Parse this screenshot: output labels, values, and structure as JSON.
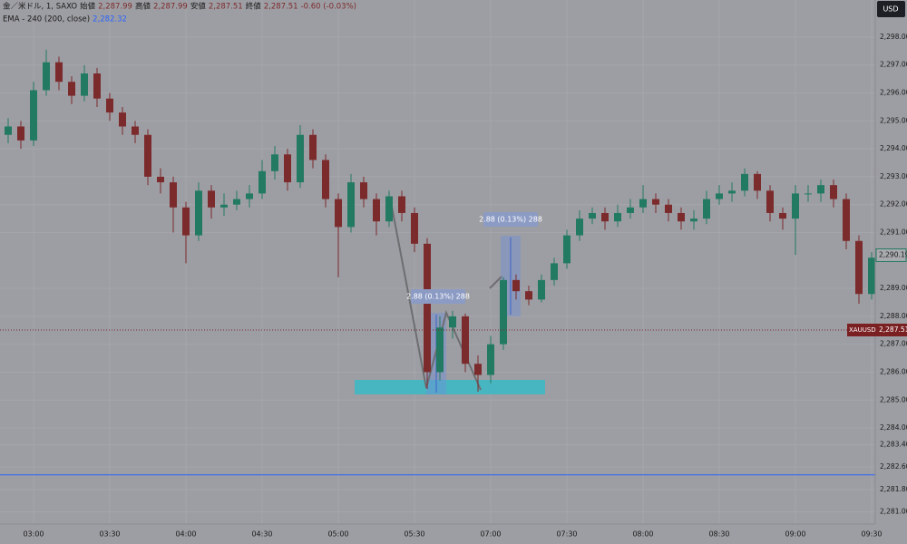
{
  "chart_data": {
    "type": "candlestick",
    "legend": {
      "symbol": "金／米ドル, 1, SAXO",
      "fields": [
        {
          "label": "始値",
          "value": "2,287.99"
        },
        {
          "label": "高値",
          "value": "2,287.99"
        },
        {
          "label": "安値",
          "value": "2,287.51"
        },
        {
          "label": "終値",
          "value": "2,287.51"
        }
      ],
      "change": "-0.60 (-0.03%)"
    },
    "ema": {
      "name": "EMA - 240 (200, close)",
      "value": {
        "value": 2282.32,
        "label": "2,282.32"
      },
      "color": "#2962ff"
    },
    "currency": "USD",
    "last": {
      "symbol": "XAUUSD",
      "price": {
        "value": 2287.51,
        "label": "2,287.51"
      }
    },
    "marker": {
      "value": 2290.19,
      "label": "2,290.19"
    },
    "measures": [
      {
        "label": "2.88 (0.13%) 288"
      },
      {
        "label": "2.88 (0.13%) 288"
      }
    ],
    "colors": {
      "up": "#237a63",
      "down": "#7c2b2d"
    },
    "x": [
      "02:50",
      "02:55",
      "03:00",
      "03:05",
      "03:10",
      "03:15",
      "03:20",
      "03:25",
      "03:30",
      "03:35",
      "03:40",
      "03:45",
      "03:50",
      "03:55",
      "04:00",
      "04:05",
      "04:10",
      "04:15",
      "04:20",
      "04:25",
      "04:30",
      "04:35",
      "04:40",
      "04:45",
      "04:50",
      "04:55",
      "05:00",
      "05:05",
      "05:10",
      "05:15",
      "05:20",
      "05:25",
      "05:30",
      "05:35",
      "05:40",
      "05:45",
      "05:50",
      "05:55",
      "07:00",
      "07:05",
      "07:10",
      "07:15",
      "07:20",
      "07:25",
      "07:30",
      "07:35",
      "07:40",
      "07:45",
      "07:50",
      "07:55",
      "08:00",
      "08:05",
      "08:10",
      "08:15",
      "08:20",
      "08:25",
      "08:30",
      "08:35",
      "08:40",
      "08:45",
      "08:50",
      "08:55",
      "09:00",
      "09:05",
      "09:10",
      "09:15",
      "09:20",
      "09:25",
      "09:30"
    ],
    "open": [
      2294.5,
      2294.8,
      2294.3,
      2296.1,
      2297.1,
      2296.4,
      2295.9,
      2296.7,
      2295.8,
      2295.3,
      2294.8,
      2294.5,
      2293.0,
      2292.8,
      2291.9,
      2290.9,
      2292.5,
      2291.9,
      2292.0,
      2292.2,
      2292.4,
      2293.2,
      2293.8,
      2292.8,
      2294.5,
      2293.6,
      2292.2,
      2291.2,
      2292.8,
      2292.2,
      2291.4,
      2292.3,
      2291.7,
      2290.6,
      2286.0,
      2287.6,
      2288.0,
      2286.3,
      2285.9,
      2287.0,
      2289.3,
      2288.9,
      2288.6,
      2289.3,
      2289.9,
      2290.9,
      2291.5,
      2291.7,
      2291.4,
      2291.7,
      2291.9,
      2292.2,
      2292.0,
      2291.7,
      2291.4,
      2291.5,
      2292.2,
      2292.4,
      2292.5,
      2293.1,
      2292.5,
      2291.7,
      2291.5,
      2292.4,
      2292.4,
      2292.7,
      2292.2,
      2290.7,
      2288.8
    ],
    "high": [
      2295.1,
      2295.0,
      2296.4,
      2297.55,
      2297.3,
      2296.6,
      2297.0,
      2296.9,
      2296.0,
      2295.5,
      2295.0,
      2294.7,
      2293.3,
      2293.0,
      2292.1,
      2292.8,
      2292.7,
      2292.4,
      2292.5,
      2292.7,
      2293.6,
      2294.1,
      2294.0,
      2294.85,
      2294.7,
      2293.8,
      2292.4,
      2293.1,
      2293.0,
      2292.4,
      2292.5,
      2292.5,
      2291.9,
      2290.8,
      2288.0,
      2288.2,
      2288.1,
      2286.6,
      2287.3,
      2289.4,
      2289.5,
      2289.1,
      2289.5,
      2290.1,
      2291.1,
      2291.8,
      2291.9,
      2291.9,
      2292.0,
      2292.2,
      2292.7,
      2292.4,
      2292.2,
      2291.9,
      2291.8,
      2292.5,
      2292.7,
      2292.8,
      2293.3,
      2293.2,
      2292.7,
      2291.9,
      2292.7,
      2292.7,
      2292.9,
      2292.9,
      2292.4,
      2290.9,
      2290.3
    ],
    "low": [
      2294.2,
      2294.0,
      2294.1,
      2295.9,
      2296.1,
      2295.6,
      2295.7,
      2295.5,
      2295.0,
      2294.5,
      2294.2,
      2292.7,
      2292.4,
      2291.0,
      2289.9,
      2290.7,
      2291.5,
      2291.6,
      2291.8,
      2291.9,
      2292.2,
      2292.9,
      2292.5,
      2292.6,
      2293.3,
      2291.9,
      2289.4,
      2291.0,
      2291.9,
      2290.9,
      2291.2,
      2291.4,
      2290.3,
      2285.4,
      2285.7,
      2287.2,
      2286.0,
      2285.3,
      2285.6,
      2286.8,
      2288.6,
      2288.4,
      2288.5,
      2289.1,
      2289.7,
      2290.7,
      2291.3,
      2291.1,
      2291.2,
      2291.5,
      2291.7,
      2291.7,
      2291.4,
      2291.1,
      2291.1,
      2291.3,
      2292.0,
      2292.1,
      2292.3,
      2292.2,
      2291.4,
      2291.1,
      2290.2,
      2292.1,
      2292.1,
      2291.9,
      2290.4,
      2288.45,
      2288.6
    ],
    "close": [
      2294.8,
      2294.3,
      2296.1,
      2297.1,
      2296.4,
      2295.9,
      2296.7,
      2295.8,
      2295.3,
      2294.8,
      2294.5,
      2293.0,
      2292.8,
      2291.9,
      2290.9,
      2292.5,
      2291.9,
      2292.0,
      2292.2,
      2292.4,
      2293.2,
      2293.8,
      2292.8,
      2294.5,
      2293.6,
      2292.2,
      2291.2,
      2292.8,
      2292.2,
      2291.4,
      2292.3,
      2291.7,
      2290.6,
      2286.0,
      2287.6,
      2288.0,
      2286.3,
      2285.9,
      2287.0,
      2289.3,
      2288.9,
      2288.6,
      2289.3,
      2289.9,
      2290.9,
      2291.5,
      2291.7,
      2291.4,
      2291.7,
      2291.9,
      2292.2,
      2292.0,
      2291.7,
      2291.4,
      2291.5,
      2292.2,
      2292.4,
      2292.5,
      2293.1,
      2292.5,
      2291.7,
      2291.5,
      2292.4,
      2292.4,
      2292.7,
      2292.2,
      2290.7,
      2288.8,
      2290.1
    ],
    "ylim": [
      2280.56,
      2299.33
    ],
    "yticks": [
      {
        "value": 2298,
        "label": "2,298.00"
      },
      {
        "value": 2297,
        "label": "2,297.00"
      },
      {
        "value": 2296,
        "label": "2,296.00"
      },
      {
        "value": 2295,
        "label": "2,295.00"
      },
      {
        "value": 2294,
        "label": "2,294.00"
      },
      {
        "value": 2293,
        "label": "2,293.00"
      },
      {
        "value": 2292,
        "label": "2,292.00"
      },
      {
        "value": 2291,
        "label": "2,291.00"
      },
      {
        "value": 2289,
        "label": "2,289.00"
      },
      {
        "value": 2288,
        "label": "2,288.00"
      },
      {
        "value": 2287,
        "label": "2,287.00"
      },
      {
        "value": 2286,
        "label": "2,286.00"
      },
      {
        "value": 2285,
        "label": "2,285.00"
      },
      {
        "value": 2284,
        "label": "2,284.00"
      },
      {
        "value": 2283.4,
        "label": "2,283.40"
      },
      {
        "value": 2282.6,
        "label": "2,282.60"
      },
      {
        "value": 2281.8,
        "label": "2,281.80"
      },
      {
        "value": 2281,
        "label": "2,281.00"
      }
    ],
    "xticks": [
      "03:00",
      "03:30",
      "04:00",
      "04:30",
      "05:00",
      "05:30",
      "07:00",
      "07:30",
      "08:00",
      "08:30",
      "09:00",
      "09:30"
    ],
    "grid": true
  }
}
